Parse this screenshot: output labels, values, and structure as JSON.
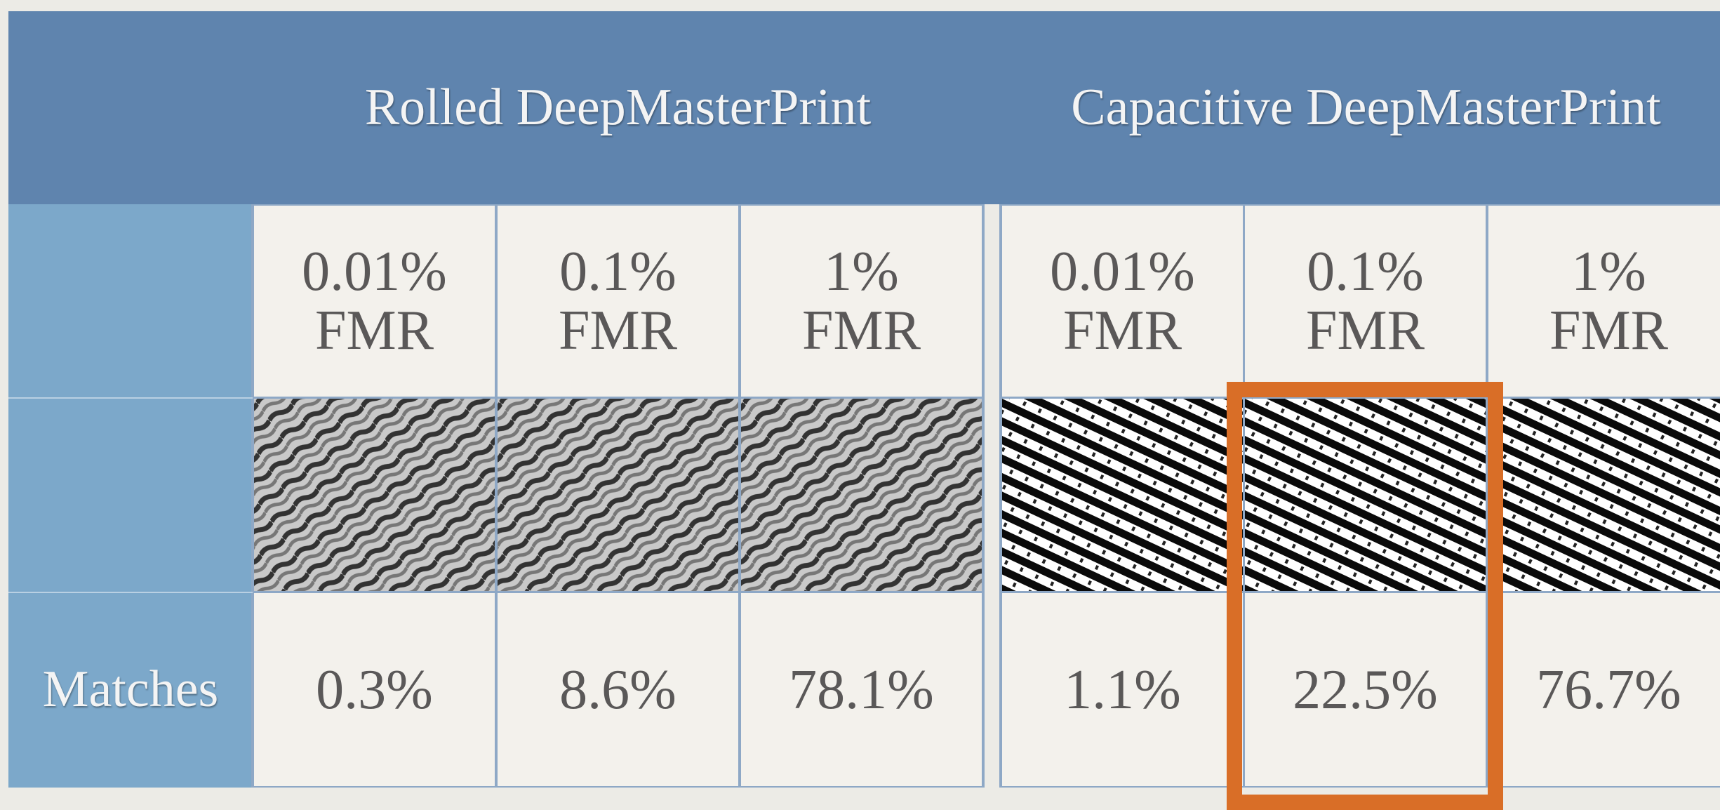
{
  "header": {
    "groups": [
      "Rolled DeepMasterPrint",
      "Capacitive DeepMasterPrint"
    ]
  },
  "table": {
    "thresholds": [
      "0.01% FMR",
      "0.1% FMR",
      "1% FMR",
      "0.01% FMR",
      "0.1% FMR",
      "1% FMR"
    ],
    "row_label": "Matches",
    "matches": [
      "0.3%",
      "8.6%",
      "78.1%",
      "1.1%",
      "22.5%",
      "76.7%"
    ]
  }
}
